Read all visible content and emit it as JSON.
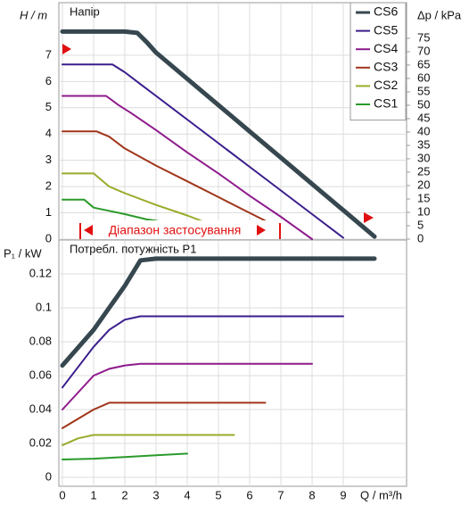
{
  "chart_data": [
    {
      "type": "line",
      "title": "Напір",
      "ylabel": "H / m",
      "y2label": "Δp / kPa",
      "annotation": "Діапазон застосування",
      "xlim": [
        0,
        11
      ],
      "ylim": [
        0,
        9
      ],
      "yticks": [
        0,
        1,
        2,
        3,
        4,
        5,
        6,
        7
      ],
      "y2lim": [
        0,
        88.3
      ],
      "y2ticks": [
        0,
        5,
        10,
        15,
        20,
        25,
        30,
        35,
        40,
        45,
        50,
        55,
        60,
        65,
        70,
        75
      ],
      "grid": true,
      "legend": "upper right",
      "series": [
        {
          "name": "CS6",
          "color": "#37474f",
          "x": [
            0,
            2,
            2.4,
            2.7,
            3,
            4,
            5,
            6,
            7,
            8,
            9,
            10
          ],
          "values": [
            7.9,
            7.9,
            7.85,
            7.5,
            7.1,
            6.1,
            5.1,
            4.1,
            3.1,
            2.1,
            1.1,
            0.1
          ]
        },
        {
          "name": "CS5",
          "color": "#3a1d8c",
          "x": [
            0,
            1.6,
            2,
            2.5,
            3,
            4,
            5,
            6,
            7,
            8,
            9
          ],
          "values": [
            6.65,
            6.65,
            6.35,
            5.9,
            5.45,
            4.55,
            3.65,
            2.75,
            1.85,
            0.95,
            0.05
          ]
        },
        {
          "name": "CS4",
          "color": "#8e1a8c",
          "x": [
            0,
            1.4,
            1.8,
            2.2,
            3,
            4,
            5,
            6,
            7,
            8
          ],
          "values": [
            5.45,
            5.45,
            5.1,
            4.8,
            4.15,
            3.3,
            2.5,
            1.65,
            0.85,
            0.0
          ]
        },
        {
          "name": "CS3",
          "color": "#a0351a",
          "x": [
            0,
            1.1,
            1.5,
            2,
            3,
            4,
            5,
            6,
            6.5
          ],
          "values": [
            4.1,
            4.1,
            3.9,
            3.45,
            2.8,
            2.2,
            1.6,
            1.0,
            0.7
          ]
        },
        {
          "name": "CS2",
          "color": "#9bab2a",
          "x": [
            0,
            1.0,
            1.5,
            2,
            3,
            4,
            5,
            5.5
          ],
          "values": [
            2.5,
            2.5,
            2.0,
            1.75,
            1.3,
            0.9,
            0.45,
            0.25
          ]
        },
        {
          "name": "CS1",
          "color": "#2a9a2a",
          "x": [
            0,
            0.7,
            1,
            2,
            2.7,
            3,
            4
          ],
          "values": [
            1.5,
            1.5,
            1.2,
            0.95,
            0.75,
            0.7,
            0.45
          ]
        }
      ]
    },
    {
      "type": "line",
      "title": "Потребл. потужність P1",
      "ylabel": "P₁ / kW",
      "xlabel": "Q / m³/h",
      "xlim": [
        0,
        11
      ],
      "ylim": [
        0,
        0.14
      ],
      "xticks": [
        0,
        1,
        2,
        3,
        4,
        5,
        6,
        7,
        8,
        9
      ],
      "yticks": [
        0,
        0.02,
        0.04,
        0.06,
        0.08,
        0.1,
        0.12
      ],
      "grid": true,
      "series": [
        {
          "color": "#37474f",
          "x": [
            0,
            1,
            2,
            2.5,
            3,
            10
          ],
          "values": [
            0.066,
            0.087,
            0.113,
            0.128,
            0.129,
            0.129
          ]
        },
        {
          "color": "#3a1d8c",
          "x": [
            0,
            1,
            1.5,
            2,
            2.5,
            9
          ],
          "values": [
            0.053,
            0.077,
            0.087,
            0.093,
            0.095,
            0.095
          ]
        },
        {
          "color": "#8e1a8c",
          "x": [
            0,
            1,
            1.5,
            2,
            2.5,
            8
          ],
          "values": [
            0.04,
            0.06,
            0.064,
            0.066,
            0.067,
            0.067
          ]
        },
        {
          "color": "#a0351a",
          "x": [
            0,
            1,
            1.5,
            6.5
          ],
          "values": [
            0.029,
            0.04,
            0.044,
            0.044
          ]
        },
        {
          "color": "#9bab2a",
          "x": [
            0,
            0.5,
            1,
            5.5
          ],
          "values": [
            0.019,
            0.023,
            0.025,
            0.025
          ]
        },
        {
          "color": "#2a9a2a",
          "x": [
            0,
            1,
            2,
            3,
            4
          ],
          "values": [
            0.0105,
            0.011,
            0.012,
            0.013,
            0.014
          ]
        }
      ]
    }
  ]
}
